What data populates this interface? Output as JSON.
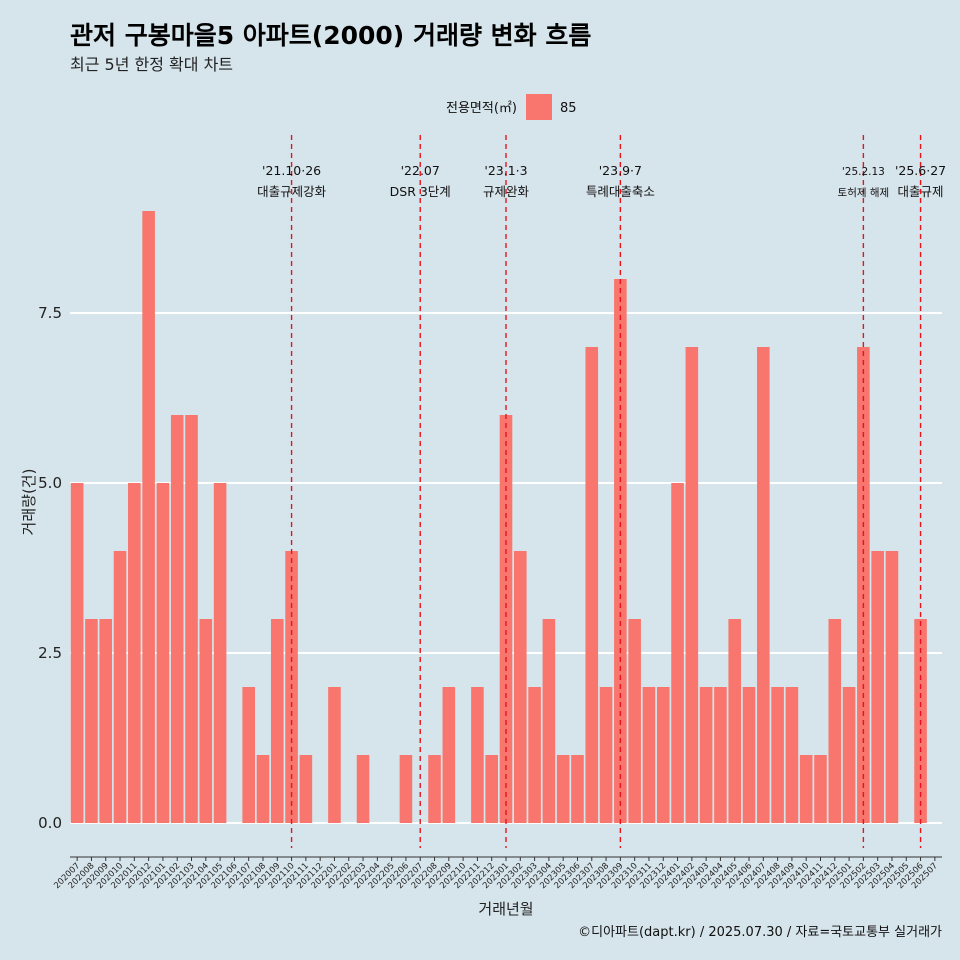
{
  "title": "관저 구봉마을5 아파트(2000) 거래량 변화 흐름",
  "subtitle": "최근 5년 한정 확대 차트",
  "caption": "©디아파트(dapt.kr) / 2025.07.30 / 자료=국토교통부 실거래가",
  "colors": {
    "background": "#d6e4eb",
    "bar": "#f8766d",
    "event_line": "#e8141b",
    "grid": "#ffffff"
  },
  "chart_data": {
    "type": "bar",
    "xlabel": "거래년월",
    "ylabel": "거래량(건)",
    "legend": {
      "title": "전용면적(㎡)",
      "position": "top",
      "entries": [
        "85"
      ]
    },
    "y_ticks": [
      "0.0",
      "2.5",
      "5.0",
      "7.5"
    ],
    "ylim": [
      -0.4,
      9.4
    ],
    "categories": [
      "202007",
      "202008",
      "202009",
      "202010",
      "202011",
      "202012",
      "202101",
      "202102",
      "202103",
      "202104",
      "202105",
      "202106",
      "202107",
      "202108",
      "202109",
      "202110",
      "202111",
      "202112",
      "202201",
      "202202",
      "202203",
      "202204",
      "202205",
      "202206",
      "202207",
      "202208",
      "202209",
      "202210",
      "202211",
      "202212",
      "202301",
      "202302",
      "202303",
      "202304",
      "202305",
      "202306",
      "202307",
      "202308",
      "202309",
      "202310",
      "202311",
      "202312",
      "202401",
      "202402",
      "202403",
      "202404",
      "202405",
      "202406",
      "202407",
      "202408",
      "202409",
      "202410",
      "202411",
      "202412",
      "202501",
      "202502",
      "202503",
      "202504",
      "202505",
      "202506",
      "202507"
    ],
    "series": [
      {
        "name": "85",
        "values": [
          5,
          3,
          3,
          4,
          5,
          9,
          5,
          6,
          6,
          3,
          5,
          0,
          2,
          1,
          3,
          4,
          1,
          0,
          2,
          0,
          1,
          0,
          0,
          1,
          0,
          1,
          2,
          0,
          2,
          1,
          6,
          4,
          2,
          3,
          1,
          1,
          7,
          2,
          8,
          3,
          2,
          2,
          5,
          7,
          2,
          2,
          3,
          2,
          7,
          2,
          2,
          1,
          1,
          3,
          2,
          7,
          4,
          4,
          0,
          3,
          0
        ]
      }
    ],
    "annotations": [
      {
        "category": "202110",
        "date": "'21.10·26",
        "label": "대출규제강화",
        "small": false
      },
      {
        "category": "202207",
        "date": "'22.07",
        "label": "DSR 3단계",
        "small": false
      },
      {
        "category": "202301",
        "date": "'23.1·3",
        "label": "규제완화",
        "small": false
      },
      {
        "category": "202309",
        "date": "'23.9·7",
        "label": "특례대출축소",
        "small": false
      },
      {
        "category": "202502",
        "date": "'25.2.13",
        "label": "토허제 해제",
        "small": true
      },
      {
        "category": "202506",
        "date": "'25.6·27",
        "label": "대출규제",
        "small": false
      }
    ]
  }
}
